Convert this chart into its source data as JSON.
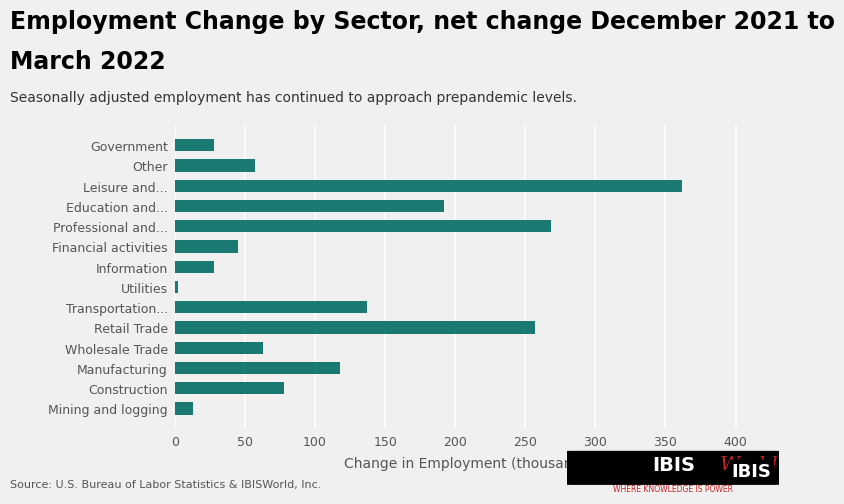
{
  "title_line1": "Employment Change by Sector, net change December 2021 to",
  "title_line2": "March 2022",
  "subtitle": "Seasonally adjusted employment has continued to approach prepandemic levels.",
  "categories": [
    "Government",
    "Other",
    "Leisure and...",
    "Education and...",
    "Professional and...",
    "Financial activities",
    "Information",
    "Utilities",
    "Transportation...",
    "Retail Trade",
    "Wholesale Trade",
    "Manufacturing",
    "Construction",
    "Mining and logging"
  ],
  "values": [
    28,
    57,
    362,
    192,
    268,
    45,
    28,
    2,
    137,
    257,
    63,
    118,
    78,
    13
  ],
  "bar_color": "#1a7a72",
  "background_color": "#f0f0f0",
  "plot_bg_color": "#f0f0f0",
  "xlabel": "Change in Employment (thousands)",
  "xlim": [
    0,
    420
  ],
  "xticks": [
    0,
    50,
    100,
    150,
    200,
    250,
    300,
    350,
    400
  ],
  "source_text": "Source: U.S. Bureau of Labor Statistics & IBISWorld, Inc.",
  "title_fontsize": 17,
  "subtitle_fontsize": 10,
  "axis_label_fontsize": 10,
  "tick_fontsize": 9,
  "source_fontsize": 8
}
